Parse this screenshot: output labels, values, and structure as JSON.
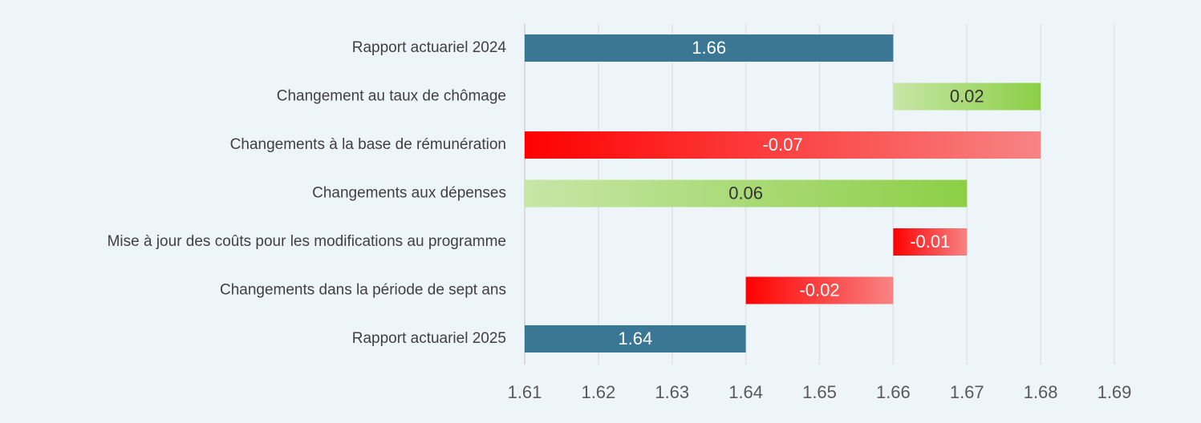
{
  "chart_data": {
    "type": "waterfall",
    "categories": [
      "Rapport actuariel 2024",
      "Changement au taux de chômage",
      "Changements à la base de rémunération",
      "Changements aux dépenses",
      "Mise à jour des coûts pour les modifications au programme",
      "Changements dans la période de sept ans",
      "Rapport actuariel 2025"
    ],
    "values": [
      1.66,
      0.02,
      -0.07,
      0.06,
      -0.01,
      -0.02,
      1.64
    ],
    "totals": [
      true,
      false,
      false,
      false,
      false,
      false,
      true
    ],
    "total_color": "#3a7795",
    "increase_colors": [
      "#c6e6a6",
      "#8ccf46"
    ],
    "decrease_colors": [
      "#ff0000",
      "#f88484"
    ],
    "xlim": [
      1.61,
      1.69
    ],
    "xticks": [
      1.61,
      1.62,
      1.63,
      1.64,
      1.65,
      1.66,
      1.67,
      1.68,
      1.69
    ],
    "grid": true
  }
}
